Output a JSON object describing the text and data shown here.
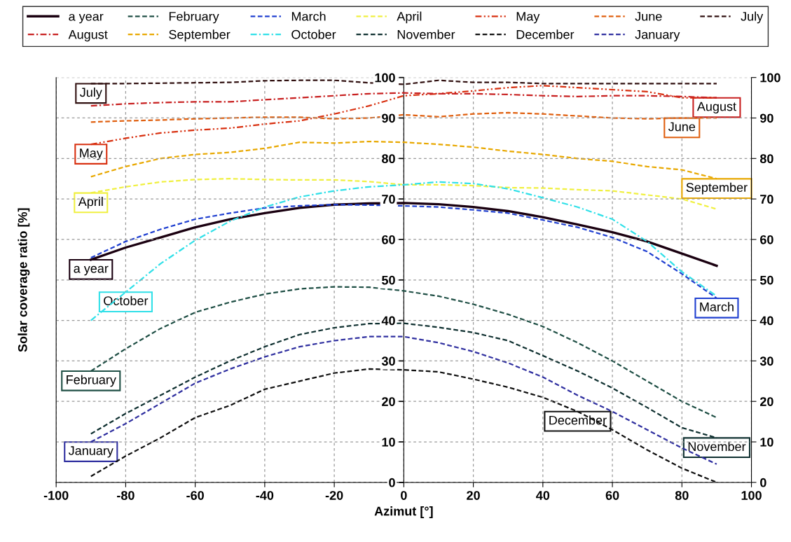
{
  "chart_data": {
    "type": "line",
    "xlabel": "Azimut [°]",
    "ylabel": "Solar coverage ratio [%]",
    "x": [
      -90,
      -80,
      -70,
      -60,
      -50,
      -40,
      -30,
      -20,
      -10,
      0,
      10,
      20,
      30,
      40,
      50,
      60,
      70,
      80,
      90
    ],
    "xlim": [
      -100,
      100
    ],
    "xticks": [
      -100,
      -80,
      -60,
      -40,
      -20,
      0,
      20,
      40,
      60,
      80,
      100
    ],
    "ylim": [
      0,
      100
    ],
    "yticks": [
      0,
      10,
      20,
      30,
      40,
      50,
      60,
      70,
      80,
      90,
      100
    ],
    "y2lim": [
      0,
      100
    ],
    "y2ticks": [
      0,
      10,
      20,
      30,
      40,
      50,
      60,
      70,
      80,
      90,
      100
    ],
    "grid": true,
    "legend": "top",
    "marker": "none",
    "series": [
      {
        "name": "a year",
        "color": "#1a0010",
        "line_style": "solid",
        "values": [
          55,
          58,
          60.5,
          63,
          65,
          66.5,
          67.8,
          68.6,
          68.9,
          69,
          68.7,
          68,
          67,
          65.5,
          63.7,
          61.8,
          59.5,
          56.5,
          53.5
        ]
      },
      {
        "name": "February",
        "color": "#1f4f45",
        "line_style": "dashed",
        "values": [
          27.5,
          33,
          38,
          42,
          44.5,
          46.5,
          47.8,
          48.3,
          48.2,
          47.3,
          46,
          44,
          41.5,
          38.5,
          34.5,
          30,
          25,
          20,
          16
        ]
      },
      {
        "name": "March",
        "color": "#1f3fd0",
        "line_style": "dashed",
        "values": [
          55.5,
          59.5,
          62.5,
          65,
          66.5,
          67.8,
          68.3,
          68.6,
          68.5,
          68.3,
          68,
          67.3,
          66.5,
          64.8,
          63,
          60.5,
          57,
          51.5,
          45.5
        ]
      },
      {
        "name": "April",
        "color": "#f0f040",
        "line_style": "dashed",
        "values": [
          71.5,
          73,
          74.2,
          74.8,
          75,
          74.8,
          74.7,
          74.7,
          74.3,
          73.5,
          73.5,
          73.3,
          72.8,
          72.7,
          72.3,
          72,
          71,
          70,
          67.5
        ]
      },
      {
        "name": "May",
        "color": "#d83010",
        "line_style": "dashdotdot",
        "values": [
          83.5,
          85,
          86.3,
          87,
          87.5,
          88.5,
          89.3,
          91,
          93,
          95.5,
          96,
          96.7,
          97.5,
          98,
          97.5,
          97,
          96.5,
          95,
          95
        ]
      },
      {
        "name": "June",
        "color": "#e06010",
        "line_style": "dashed",
        "values": [
          89,
          89.3,
          89.5,
          89.8,
          90,
          90.2,
          90.2,
          89.8,
          90,
          90.8,
          90.3,
          91,
          91.3,
          91,
          90.5,
          90,
          89.8,
          90,
          90
        ]
      },
      {
        "name": "July",
        "color": "#301010",
        "line_style": "dashed",
        "values": [
          98.5,
          98.5,
          98.6,
          98.7,
          98.8,
          99.2,
          99.3,
          99.3,
          98.7,
          98.3,
          99.3,
          98.8,
          98.8,
          98.5,
          98.5,
          98.5,
          98.5,
          98.5,
          98.5
        ]
      },
      {
        "name": "August",
        "color": "#c82020",
        "line_style": "dashdot",
        "values": [
          93,
          93.5,
          93.8,
          94,
          94,
          94.5,
          95,
          95.5,
          96,
          96.2,
          96,
          96,
          95.8,
          95.5,
          95.3,
          95.5,
          95.5,
          95.3,
          95
        ]
      },
      {
        "name": "September",
        "color": "#e8a800",
        "line_style": "dashed",
        "values": [
          75.5,
          78,
          80,
          81,
          81.5,
          82.5,
          84,
          83.8,
          84.2,
          84,
          83.5,
          82.8,
          81.8,
          81,
          80,
          79.3,
          78,
          77.2,
          75
        ]
      },
      {
        "name": "October",
        "color": "#30e0e8",
        "line_style": "dashdot",
        "values": [
          40,
          47,
          54,
          59.8,
          64.5,
          68,
          70.5,
          72,
          73,
          73.5,
          74.2,
          73.8,
          72.5,
          70.3,
          68,
          65,
          59.5,
          52,
          46
        ]
      },
      {
        "name": "November",
        "color": "#0f3030",
        "line_style": "dashed",
        "values": [
          12,
          17,
          21.5,
          26,
          30,
          33.5,
          36.5,
          38.2,
          39.2,
          39.3,
          38.3,
          37,
          35,
          31.3,
          27.5,
          23.3,
          18.5,
          13.5,
          11
        ]
      },
      {
        "name": "December",
        "color": "#101010",
        "line_style": "dashed",
        "values": [
          1.5,
          6.5,
          11,
          16,
          19,
          23,
          25,
          27,
          28,
          27.8,
          27.3,
          25.5,
          23.5,
          21,
          17.5,
          13,
          8,
          3.5,
          0
        ]
      },
      {
        "name": "January",
        "color": "#3030a0",
        "line_style": "dashed",
        "values": [
          10,
          14.5,
          19.5,
          24.5,
          28,
          31,
          33.5,
          35,
          36,
          36,
          34.5,
          32.3,
          29.5,
          26,
          21.5,
          17.5,
          13,
          8.5,
          4.5
        ]
      }
    ],
    "annotations": [
      {
        "text": "a year",
        "x": -90,
        "y": 55
      },
      {
        "text": "February",
        "x": -90,
        "y": 27.5
      },
      {
        "text": "March",
        "x": 90,
        "y": 45.5
      },
      {
        "text": "April",
        "x": -90,
        "y": 71.5
      },
      {
        "text": "May",
        "x": -90,
        "y": 83.5
      },
      {
        "text": "June",
        "x": 80,
        "y": 90
      },
      {
        "text": "July",
        "x": -90,
        "y": 98.5
      },
      {
        "text": "August",
        "x": 90,
        "y": 95
      },
      {
        "text": "September",
        "x": 90,
        "y": 75
      },
      {
        "text": "October",
        "x": -80,
        "y": 47
      },
      {
        "text": "November",
        "x": 90,
        "y": 11
      },
      {
        "text": "December",
        "x": 50,
        "y": 17.5
      },
      {
        "text": "January",
        "x": -90,
        "y": 10
      }
    ]
  }
}
